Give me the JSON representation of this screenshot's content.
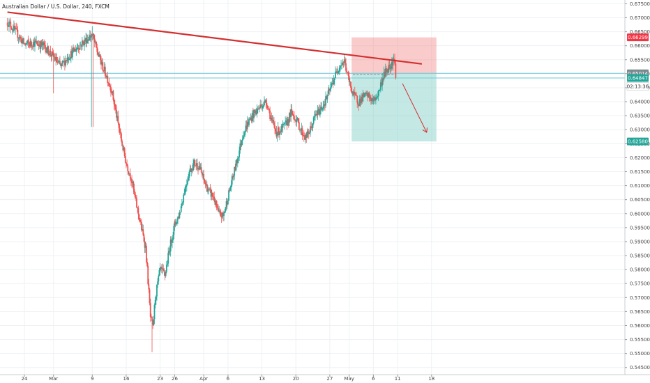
{
  "chart_data": {
    "type": "candlestick",
    "title": "Australian Dollar / U.S. Dollar, 240, FXCM",
    "y_axis": {
      "position": "right",
      "ylim": [
        0.5435,
        0.6755
      ],
      "ticks": [
        "0.67500",
        "0.67000",
        "0.66500",
        "0.66000",
        "0.65500",
        "0.65000",
        "0.64500",
        "0.64000",
        "0.63500",
        "0.63000",
        "0.62500",
        "0.62000",
        "0.61500",
        "0.61000",
        "0.60500",
        "0.60000",
        "0.59500",
        "0.59000",
        "0.58500",
        "0.58000",
        "0.57500",
        "0.57000",
        "0.56500",
        "0.56000",
        "0.55500",
        "0.55000",
        "0.54500"
      ]
    },
    "x_axis": {
      "ticks": [
        {
          "label": "24",
          "day": 0
        },
        {
          "label": "Mar",
          "day": 6
        },
        {
          "label": "9",
          "day": 14
        },
        {
          "label": "16",
          "day": 21
        },
        {
          "label": "23",
          "day": 28
        },
        {
          "label": "26",
          "day": 31
        },
        {
          "label": "Apr",
          "day": 37
        },
        {
          "label": "6",
          "day": 42
        },
        {
          "label": "13",
          "day": 49
        },
        {
          "label": "20",
          "day": 56
        },
        {
          "label": "27",
          "day": 63
        },
        {
          "label": "May",
          "day": 67
        },
        {
          "label": "6",
          "day": 72
        },
        {
          "label": "11",
          "day": 77
        },
        {
          "label": "18",
          "day": 84
        }
      ]
    },
    "grid": true,
    "price_path": [
      [
        -3.5,
        0.6685
      ],
      [
        -2,
        0.6655
      ],
      [
        0,
        0.6605
      ],
      [
        2,
        0.661
      ],
      [
        4,
        0.66
      ],
      [
        6,
        0.656
      ],
      [
        7.5,
        0.6525
      ],
      [
        9,
        0.656
      ],
      [
        11,
        0.6595
      ],
      [
        13,
        0.6625
      ],
      [
        14,
        0.664
      ],
      [
        15,
        0.658
      ],
      [
        16,
        0.653
      ],
      [
        17,
        0.649
      ],
      [
        18,
        0.644
      ],
      [
        19,
        0.635
      ],
      [
        20,
        0.626
      ],
      [
        21,
        0.618
      ],
      [
        22,
        0.613
      ],
      [
        23,
        0.604
      ],
      [
        24,
        0.596
      ],
      [
        25,
        0.588
      ],
      [
        25.5,
        0.576
      ],
      [
        26,
        0.563
      ],
      [
        26.5,
        0.559
      ],
      [
        27,
        0.57
      ],
      [
        28,
        0.58
      ],
      [
        29,
        0.578
      ],
      [
        30,
        0.588
      ],
      [
        31,
        0.596
      ],
      [
        32,
        0.6
      ],
      [
        33,
        0.608
      ],
      [
        34,
        0.615
      ],
      [
        35,
        0.618
      ],
      [
        36,
        0.617
      ],
      [
        37,
        0.612
      ],
      [
        38,
        0.608
      ],
      [
        39,
        0.606
      ],
      [
        40,
        0.6
      ],
      [
        41,
        0.599
      ],
      [
        42,
        0.606
      ],
      [
        43,
        0.613
      ],
      [
        44,
        0.62
      ],
      [
        45,
        0.628
      ],
      [
        46,
        0.632
      ],
      [
        47,
        0.635
      ],
      [
        48,
        0.637
      ],
      [
        49,
        0.639
      ],
      [
        50,
        0.64
      ],
      [
        51,
        0.633
      ],
      [
        52,
        0.629
      ],
      [
        53,
        0.63
      ],
      [
        54,
        0.632
      ],
      [
        55,
        0.636
      ],
      [
        56,
        0.634
      ],
      [
        57,
        0.63
      ],
      [
        58,
        0.627
      ],
      [
        59,
        0.63
      ],
      [
        60,
        0.635
      ],
      [
        61,
        0.637
      ],
      [
        62,
        0.64
      ],
      [
        63,
        0.644
      ],
      [
        64,
        0.649
      ],
      [
        65,
        0.653
      ],
      [
        66,
        0.6545
      ],
      [
        67,
        0.647
      ],
      [
        68,
        0.642
      ],
      [
        69,
        0.64
      ],
      [
        70,
        0.642
      ],
      [
        71,
        0.642
      ],
      [
        72,
        0.64
      ],
      [
        73,
        0.643
      ],
      [
        74,
        0.649
      ],
      [
        75,
        0.652
      ],
      [
        75.8,
        0.654
      ],
      [
        76.2,
        0.6555
      ],
      [
        76.6,
        0.6501
      ]
    ],
    "drawings": {
      "trendline": {
        "color": "#d32f2f",
        "from": [
          -3.5,
          0.672
        ],
        "to": [
          82,
          0.6535
        ]
      },
      "risk_zone": {
        "color": "#f28b8b",
        "x_from": 67.5,
        "x_to": 85,
        "y_from": 0.66299,
        "y_to": 0.65014
      },
      "reward_zone": {
        "color": "#7ccfc6",
        "x_from": 67.5,
        "x_to": 85,
        "y_from": 0.65014,
        "y_to": 0.6258
      },
      "horizontal_line": {
        "color": "#6fc6d8",
        "y": 0.64847
      },
      "horizontal_line_2": {
        "color": "#6fc6d8",
        "y": 0.65014
      },
      "entry_dash": {
        "color": "#888888",
        "x_from": 67.8,
        "x_to": 76.6,
        "y": 0.6497
      },
      "arrow": {
        "color": "#d32f2f",
        "from": [
          78,
          0.6465
        ],
        "to": [
          83,
          0.629
        ]
      }
    },
    "price_tags": [
      {
        "label": "0.66299",
        "color": "#f23645",
        "y": 0.66299
      },
      {
        "label": "0.65014",
        "color": "#7a8b8f",
        "y": 0.65014
      },
      {
        "label": "0.64847",
        "color": "#26a69a",
        "y": 0.64847
      },
      {
        "label": "0.62580",
        "color": "#26a69a",
        "y": 0.6258
      }
    ],
    "countdown": "02:13:36",
    "colors": {
      "up": "#26a69a",
      "down": "#ef5350",
      "grid": "#eef1f4"
    }
  }
}
